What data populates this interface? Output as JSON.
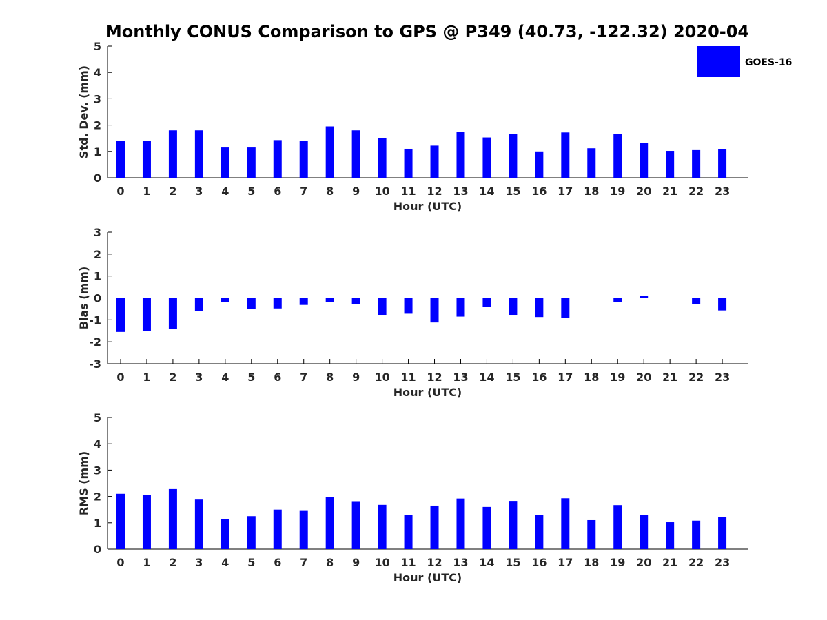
{
  "title": "Monthly CONUS Comparison to GPS @ P349 (40.73, -122.32) 2020-04",
  "legend": {
    "label": "GOES-16",
    "color": "#0000ff"
  },
  "chart_data": [
    {
      "type": "bar",
      "name": "std-dev",
      "xlabel": "Hour (UTC)",
      "ylabel": "Std. Dev. (mm)",
      "ylim": [
        0,
        5
      ],
      "yticks": [
        0,
        1,
        2,
        3,
        4,
        5
      ],
      "categories": [
        "0",
        "1",
        "2",
        "3",
        "4",
        "5",
        "6",
        "7",
        "8",
        "9",
        "10",
        "11",
        "12",
        "13",
        "14",
        "15",
        "16",
        "17",
        "18",
        "19",
        "20",
        "21",
        "22",
        "23"
      ],
      "series": [
        {
          "name": "GOES-16",
          "color": "#0000ff",
          "values": [
            1.4,
            1.4,
            1.8,
            1.8,
            1.15,
            1.15,
            1.43,
            1.4,
            1.95,
            1.8,
            1.5,
            1.1,
            1.22,
            1.73,
            1.53,
            1.66,
            1.0,
            1.72,
            1.12,
            1.67,
            1.32,
            1.02,
            1.05,
            1.09
          ]
        }
      ]
    },
    {
      "type": "bar",
      "name": "bias",
      "xlabel": "Hour (UTC)",
      "ylabel": "Bias (mm)",
      "ylim": [
        -3,
        3
      ],
      "yticks": [
        -3,
        -2,
        -1,
        0,
        1,
        2,
        3
      ],
      "categories": [
        "0",
        "1",
        "2",
        "3",
        "4",
        "5",
        "6",
        "7",
        "8",
        "9",
        "10",
        "11",
        "12",
        "13",
        "14",
        "15",
        "16",
        "17",
        "18",
        "19",
        "20",
        "21",
        "22",
        "23"
      ],
      "series": [
        {
          "name": "GOES-16",
          "color": "#0000ff",
          "values": [
            -1.55,
            -1.5,
            -1.42,
            -0.6,
            -0.2,
            -0.5,
            -0.48,
            -0.32,
            -0.18,
            -0.28,
            -0.77,
            -0.72,
            -1.12,
            -0.85,
            -0.42,
            -0.77,
            -0.87,
            -0.92,
            -0.01,
            -0.2,
            0.1,
            -0.01,
            -0.28,
            -0.57
          ]
        }
      ]
    },
    {
      "type": "bar",
      "name": "rms",
      "xlabel": "Hour (UTC)",
      "ylabel": "RMS (mm)",
      "ylim": [
        0,
        5
      ],
      "yticks": [
        0,
        1,
        2,
        3,
        4,
        5
      ],
      "categories": [
        "0",
        "1",
        "2",
        "3",
        "4",
        "5",
        "6",
        "7",
        "8",
        "9",
        "10",
        "11",
        "12",
        "13",
        "14",
        "15",
        "16",
        "17",
        "18",
        "19",
        "20",
        "21",
        "22",
        "23"
      ],
      "series": [
        {
          "name": "GOES-16",
          "color": "#0000ff",
          "values": [
            2.1,
            2.05,
            2.28,
            1.88,
            1.15,
            1.25,
            1.5,
            1.45,
            1.97,
            1.82,
            1.68,
            1.3,
            1.65,
            1.92,
            1.6,
            1.83,
            1.3,
            1.93,
            1.1,
            1.67,
            1.3,
            1.02,
            1.08,
            1.23
          ]
        }
      ]
    }
  ]
}
